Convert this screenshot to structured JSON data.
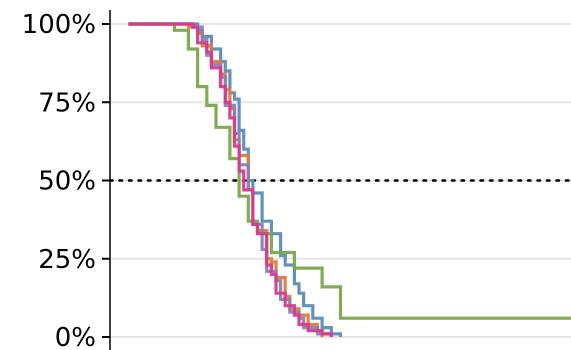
{
  "chart_data": {
    "type": "line",
    "title": "",
    "xlabel": "",
    "ylabel": "",
    "xlim": [
      0,
      100
    ],
    "ylim": [
      0,
      100
    ],
    "yticks": [
      {
        "value": 0,
        "label": "0%"
      },
      {
        "value": 25,
        "label": "25%"
      },
      {
        "value": 50,
        "label": "50%"
      },
      {
        "value": 75,
        "label": "75%"
      },
      {
        "value": 100,
        "label": "100%"
      }
    ],
    "grid": true,
    "reference_line": {
      "y": 50,
      "style": "dotted",
      "color": "#000000"
    },
    "step": true,
    "series": [
      {
        "color": "#5b8db8",
        "points": [
          [
            4,
            100
          ],
          [
            19,
            100
          ],
          [
            19,
            98
          ],
          [
            20,
            98
          ],
          [
            20,
            96
          ],
          [
            22,
            96
          ],
          [
            22,
            92
          ],
          [
            24,
            92
          ],
          [
            24,
            88
          ],
          [
            25,
            88
          ],
          [
            25,
            85
          ],
          [
            26,
            85
          ],
          [
            26,
            78
          ],
          [
            27,
            78
          ],
          [
            27,
            76
          ],
          [
            28,
            76
          ],
          [
            28,
            66
          ],
          [
            29,
            66
          ],
          [
            29,
            60
          ],
          [
            30,
            60
          ],
          [
            30,
            50
          ],
          [
            31,
            50
          ],
          [
            31,
            46
          ],
          [
            33,
            46
          ],
          [
            33,
            37
          ],
          [
            35,
            37
          ],
          [
            35,
            33
          ],
          [
            37,
            33
          ],
          [
            37,
            26
          ],
          [
            38,
            26
          ],
          [
            38,
            23
          ],
          [
            40,
            23
          ],
          [
            40,
            17
          ],
          [
            41,
            17
          ],
          [
            41,
            14
          ],
          [
            42,
            14
          ],
          [
            42,
            10
          ],
          [
            44,
            10
          ],
          [
            44,
            6
          ],
          [
            46,
            6
          ],
          [
            46,
            3
          ],
          [
            48,
            3
          ],
          [
            48,
            1
          ],
          [
            50,
            1
          ],
          [
            50,
            0
          ]
        ]
      },
      {
        "color": "#e07b39",
        "points": [
          [
            4,
            100
          ],
          [
            17,
            100
          ],
          [
            17,
            99
          ],
          [
            19,
            99
          ],
          [
            19,
            97
          ],
          [
            20,
            97
          ],
          [
            20,
            93
          ],
          [
            22,
            93
          ],
          [
            22,
            88
          ],
          [
            24,
            88
          ],
          [
            24,
            84
          ],
          [
            25,
            84
          ],
          [
            25,
            79
          ],
          [
            26,
            79
          ],
          [
            26,
            73
          ],
          [
            27,
            73
          ],
          [
            27,
            63
          ],
          [
            28,
            63
          ],
          [
            28,
            58
          ],
          [
            30,
            58
          ],
          [
            30,
            47
          ],
          [
            31,
            47
          ],
          [
            31,
            36
          ],
          [
            32,
            36
          ],
          [
            32,
            34
          ],
          [
            34,
            34
          ],
          [
            34,
            25
          ],
          [
            35,
            25
          ],
          [
            35,
            24
          ],
          [
            36,
            24
          ],
          [
            36,
            19
          ],
          [
            38,
            19
          ],
          [
            38,
            13
          ],
          [
            39,
            13
          ],
          [
            39,
            9
          ],
          [
            41,
            9
          ],
          [
            41,
            7
          ],
          [
            43,
            7
          ],
          [
            43,
            4
          ],
          [
            45,
            4
          ],
          [
            45,
            2
          ],
          [
            46,
            2
          ],
          [
            46,
            0
          ]
        ]
      },
      {
        "color": "#8a7fb5",
        "points": [
          [
            4,
            100
          ],
          [
            18,
            100
          ],
          [
            18,
            99
          ],
          [
            20,
            99
          ],
          [
            20,
            95
          ],
          [
            21,
            95
          ],
          [
            21,
            90
          ],
          [
            22,
            90
          ],
          [
            22,
            87
          ],
          [
            24,
            87
          ],
          [
            24,
            83
          ],
          [
            25,
            83
          ],
          [
            25,
            74
          ],
          [
            27,
            74
          ],
          [
            27,
            65
          ],
          [
            28,
            65
          ],
          [
            28,
            55
          ],
          [
            30,
            55
          ],
          [
            30,
            47
          ],
          [
            31,
            47
          ],
          [
            31,
            36
          ],
          [
            33,
            36
          ],
          [
            33,
            28
          ],
          [
            34,
            28
          ],
          [
            34,
            21
          ],
          [
            36,
            21
          ],
          [
            36,
            18
          ],
          [
            37,
            18
          ],
          [
            37,
            12
          ],
          [
            39,
            12
          ],
          [
            39,
            8
          ],
          [
            41,
            8
          ],
          [
            41,
            6
          ],
          [
            42,
            6
          ],
          [
            42,
            3
          ],
          [
            45,
            3
          ],
          [
            45,
            1
          ],
          [
            48,
            1
          ],
          [
            48,
            0
          ]
        ]
      },
      {
        "color": "#7aa84a",
        "points": [
          [
            4,
            100
          ],
          [
            14,
            100
          ],
          [
            14,
            98
          ],
          [
            17,
            98
          ],
          [
            17,
            92
          ],
          [
            19,
            92
          ],
          [
            19,
            80
          ],
          [
            21,
            80
          ],
          [
            21,
            74
          ],
          [
            23,
            74
          ],
          [
            23,
            67
          ],
          [
            26,
            67
          ],
          [
            26,
            57
          ],
          [
            28,
            57
          ],
          [
            28,
            45
          ],
          [
            30,
            45
          ],
          [
            30,
            37
          ],
          [
            32,
            37
          ],
          [
            32,
            33
          ],
          [
            35,
            33
          ],
          [
            35,
            27
          ],
          [
            40,
            27
          ],
          [
            40,
            22
          ],
          [
            46,
            22
          ],
          [
            46,
            16
          ],
          [
            50,
            16
          ],
          [
            50,
            6
          ],
          [
            100,
            6
          ]
        ]
      },
      {
        "color": "#d63b8e",
        "points": [
          [
            4,
            100
          ],
          [
            18,
            100
          ],
          [
            18,
            99
          ],
          [
            19,
            99
          ],
          [
            19,
            94
          ],
          [
            21,
            94
          ],
          [
            21,
            91
          ],
          [
            22,
            91
          ],
          [
            22,
            86
          ],
          [
            24,
            86
          ],
          [
            24,
            80
          ],
          [
            25,
            80
          ],
          [
            25,
            75
          ],
          [
            26,
            75
          ],
          [
            26,
            70
          ],
          [
            27,
            70
          ],
          [
            27,
            61
          ],
          [
            28,
            61
          ],
          [
            28,
            53
          ],
          [
            29,
            53
          ],
          [
            29,
            47
          ],
          [
            31,
            47
          ],
          [
            31,
            36
          ],
          [
            32,
            36
          ],
          [
            32,
            33
          ],
          [
            34,
            33
          ],
          [
            34,
            23
          ],
          [
            35,
            23
          ],
          [
            35,
            20
          ],
          [
            36,
            20
          ],
          [
            36,
            14
          ],
          [
            38,
            14
          ],
          [
            38,
            10
          ],
          [
            40,
            10
          ],
          [
            40,
            7
          ],
          [
            41,
            7
          ],
          [
            41,
            4
          ],
          [
            43,
            4
          ],
          [
            43,
            2
          ],
          [
            46,
            2
          ],
          [
            46,
            1
          ],
          [
            48,
            1
          ],
          [
            48,
            0
          ]
        ]
      }
    ]
  }
}
